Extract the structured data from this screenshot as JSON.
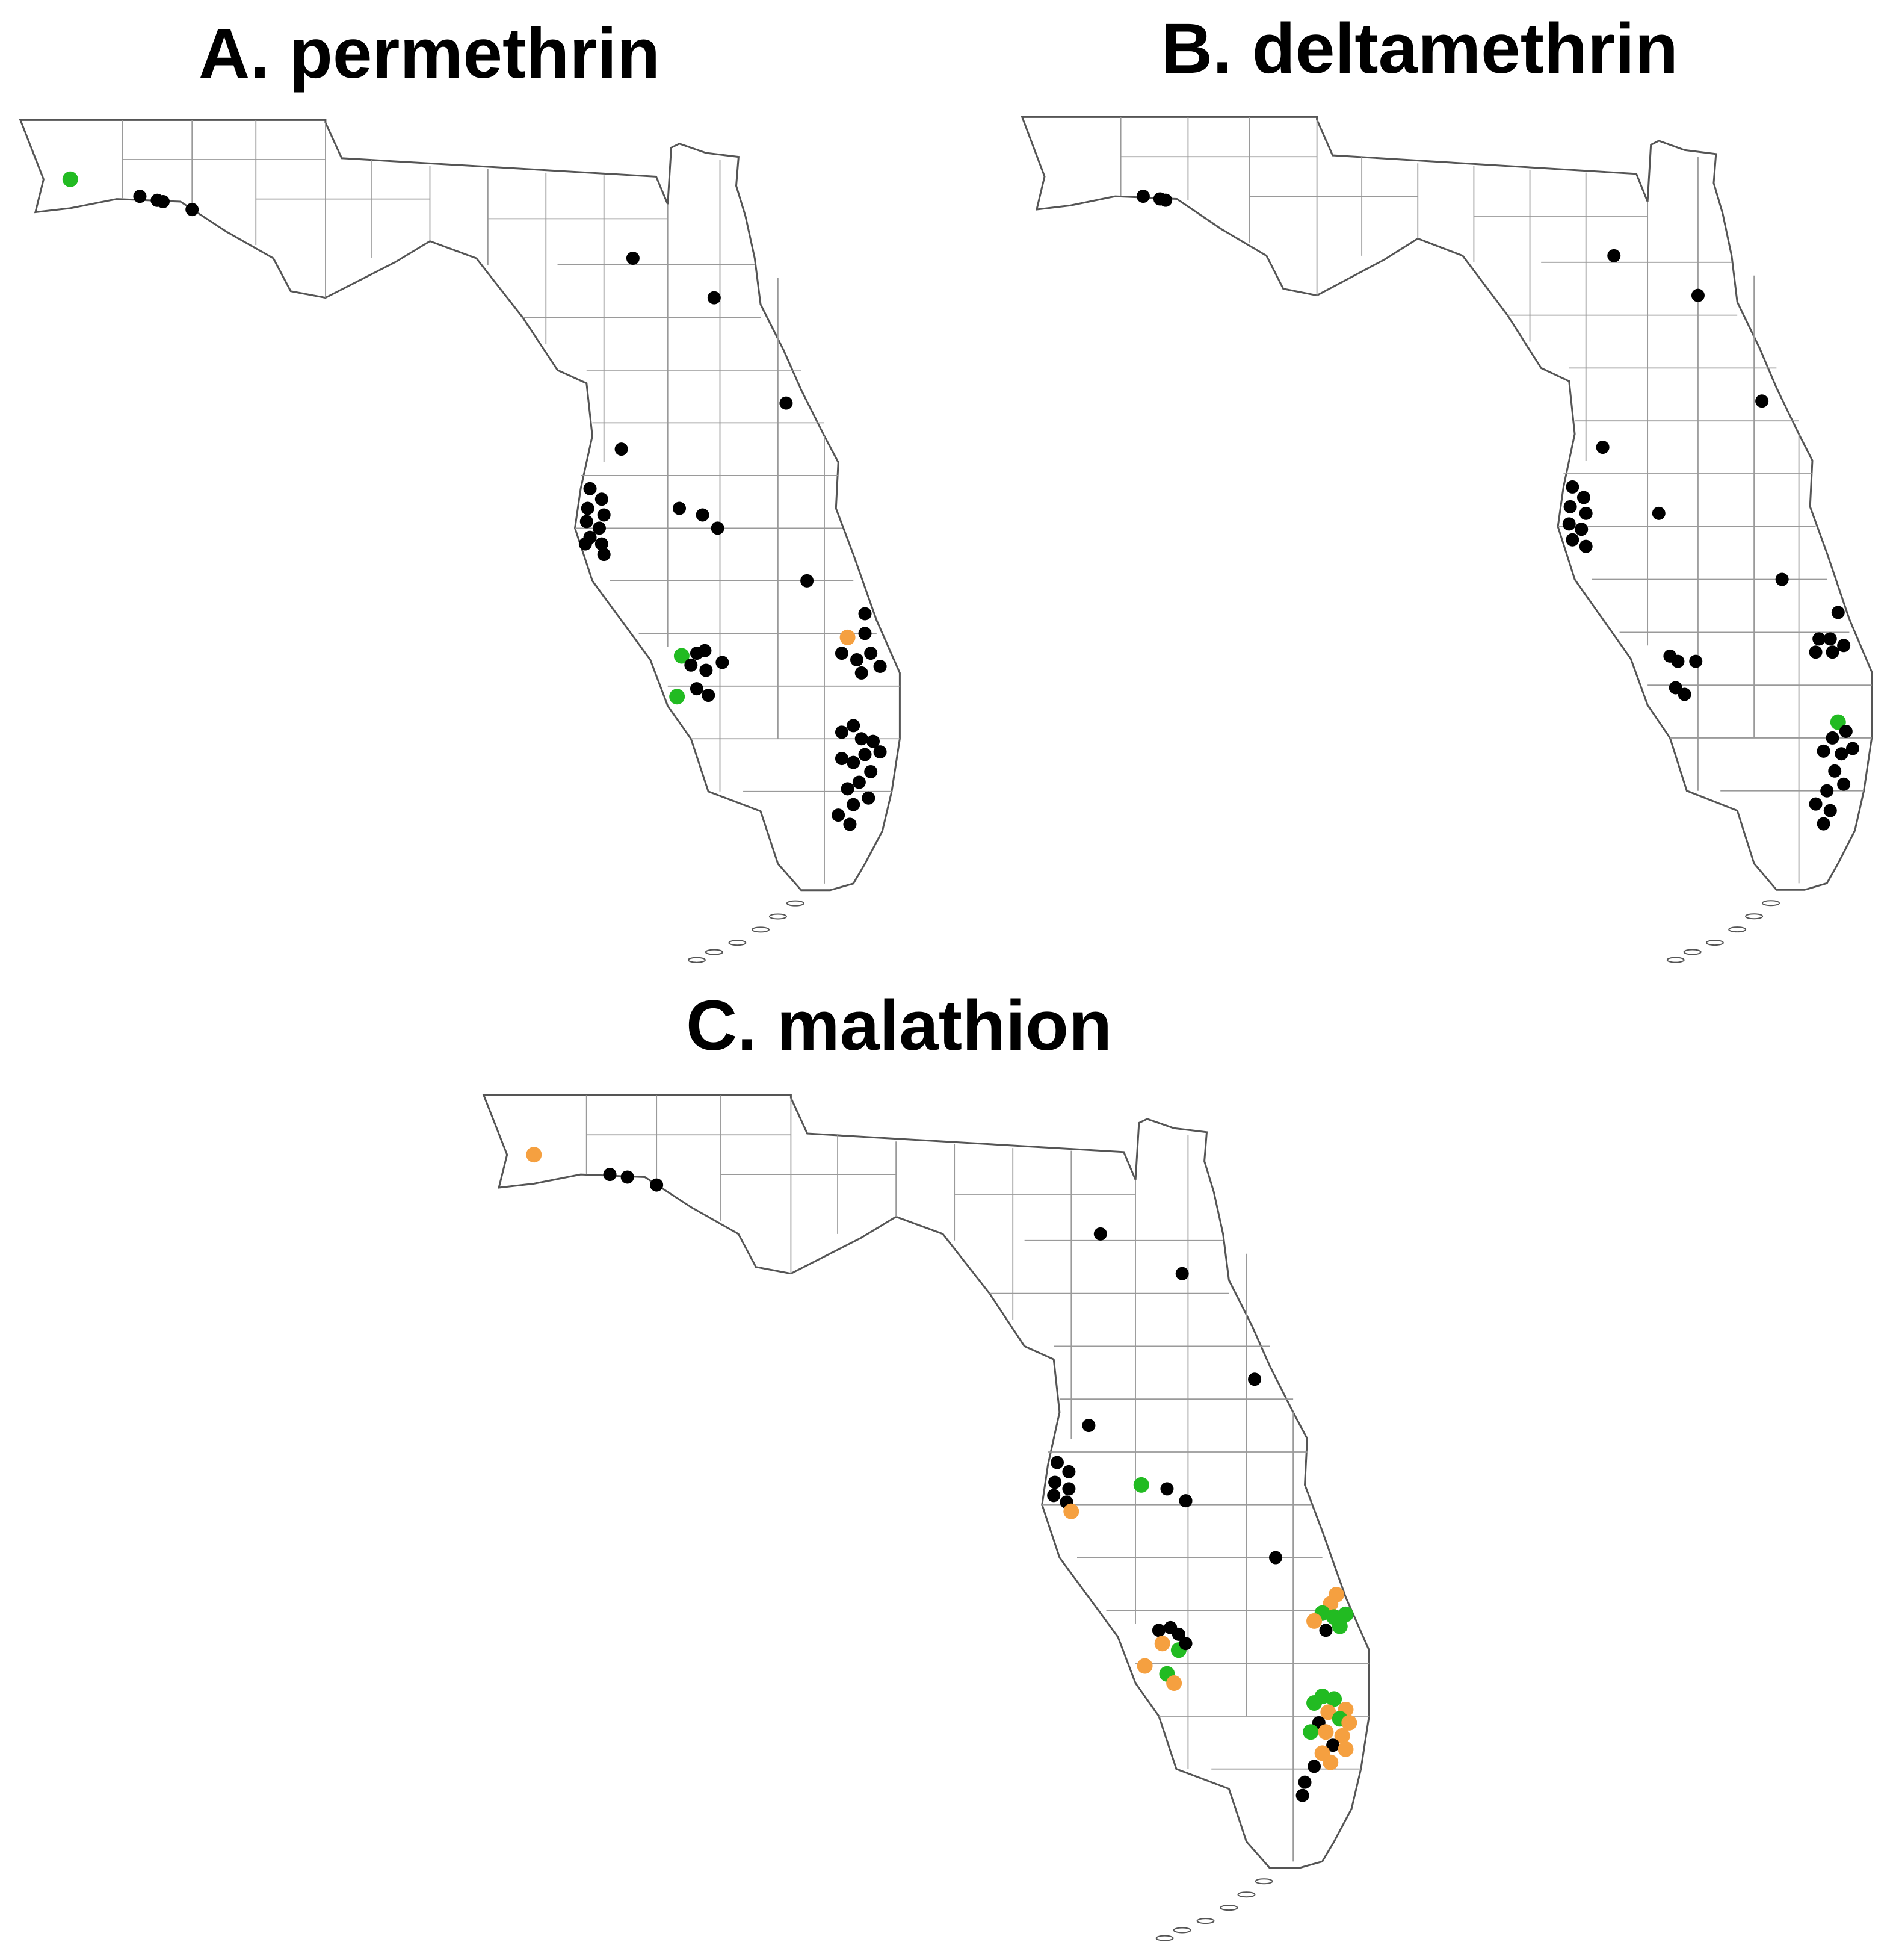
{
  "colors": {
    "black": "#000000",
    "green": "#22bb22",
    "orange": "#f5a040",
    "outline": "#555555",
    "county": "#9a9a9a"
  },
  "panels": [
    {
      "id": "A",
      "title": "A. permethrin",
      "points": [
        {
          "lon": -87.2,
          "lat": 30.55,
          "c": "green"
        },
        {
          "lon": -86.6,
          "lat": 30.42,
          "c": "black"
        },
        {
          "lon": -86.45,
          "lat": 30.39,
          "c": "black"
        },
        {
          "lon": -86.4,
          "lat": 30.38,
          "c": "black"
        },
        {
          "lon": -86.15,
          "lat": 30.32,
          "c": "black"
        },
        {
          "lon": -82.35,
          "lat": 29.95,
          "c": "black"
        },
        {
          "lon": -81.65,
          "lat": 29.65,
          "c": "black"
        },
        {
          "lon": -81.03,
          "lat": 28.85,
          "c": "black"
        },
        {
          "lon": -82.45,
          "lat": 28.5,
          "c": "black"
        },
        {
          "lon": -82.72,
          "lat": 28.2,
          "c": "black"
        },
        {
          "lon": -82.62,
          "lat": 28.12,
          "c": "black"
        },
        {
          "lon": -82.74,
          "lat": 28.05,
          "c": "black"
        },
        {
          "lon": -82.6,
          "lat": 28.0,
          "c": "black"
        },
        {
          "lon": -82.75,
          "lat": 27.95,
          "c": "black"
        },
        {
          "lon": -82.64,
          "lat": 27.9,
          "c": "black"
        },
        {
          "lon": -82.72,
          "lat": 27.83,
          "c": "black"
        },
        {
          "lon": -82.62,
          "lat": 27.78,
          "c": "black"
        },
        {
          "lon": -82.76,
          "lat": 27.78,
          "c": "black"
        },
        {
          "lon": -82.6,
          "lat": 27.7,
          "c": "black"
        },
        {
          "lon": -81.95,
          "lat": 28.05,
          "c": "black"
        },
        {
          "lon": -81.75,
          "lat": 28.0,
          "c": "black"
        },
        {
          "lon": -81.62,
          "lat": 27.9,
          "c": "black"
        },
        {
          "lon": -80.85,
          "lat": 27.5,
          "c": "black"
        },
        {
          "lon": -80.35,
          "lat": 27.25,
          "c": "black"
        },
        {
          "lon": -80.5,
          "lat": 27.07,
          "c": "orange"
        },
        {
          "lon": -80.35,
          "lat": 27.1,
          "c": "black"
        },
        {
          "lon": -80.55,
          "lat": 26.95,
          "c": "black"
        },
        {
          "lon": -80.42,
          "lat": 26.9,
          "c": "black"
        },
        {
          "lon": -80.3,
          "lat": 26.95,
          "c": "black"
        },
        {
          "lon": -80.38,
          "lat": 26.8,
          "c": "black"
        },
        {
          "lon": -80.22,
          "lat": 26.85,
          "c": "black"
        },
        {
          "lon": -81.93,
          "lat": 26.93,
          "c": "green"
        },
        {
          "lon": -81.8,
          "lat": 26.95,
          "c": "black"
        },
        {
          "lon": -81.73,
          "lat": 26.97,
          "c": "black"
        },
        {
          "lon": -81.85,
          "lat": 26.86,
          "c": "black"
        },
        {
          "lon": -81.72,
          "lat": 26.82,
          "c": "black"
        },
        {
          "lon": -81.58,
          "lat": 26.88,
          "c": "black"
        },
        {
          "lon": -81.8,
          "lat": 26.68,
          "c": "black"
        },
        {
          "lon": -81.7,
          "lat": 26.63,
          "c": "black"
        },
        {
          "lon": -81.97,
          "lat": 26.62,
          "c": "green"
        },
        {
          "lon": -80.55,
          "lat": 26.35,
          "c": "black"
        },
        {
          "lon": -80.45,
          "lat": 26.4,
          "c": "black"
        },
        {
          "lon": -80.38,
          "lat": 26.3,
          "c": "black"
        },
        {
          "lon": -80.28,
          "lat": 26.28,
          "c": "black"
        },
        {
          "lon": -80.22,
          "lat": 26.2,
          "c": "black"
        },
        {
          "lon": -80.35,
          "lat": 26.18,
          "c": "black"
        },
        {
          "lon": -80.45,
          "lat": 26.12,
          "c": "black"
        },
        {
          "lon": -80.55,
          "lat": 26.15,
          "c": "black"
        },
        {
          "lon": -80.3,
          "lat": 26.05,
          "c": "black"
        },
        {
          "lon": -80.4,
          "lat": 25.97,
          "c": "black"
        },
        {
          "lon": -80.5,
          "lat": 25.92,
          "c": "black"
        },
        {
          "lon": -80.32,
          "lat": 25.85,
          "c": "black"
        },
        {
          "lon": -80.45,
          "lat": 25.8,
          "c": "black"
        },
        {
          "lon": -80.58,
          "lat": 25.72,
          "c": "black"
        },
        {
          "lon": -80.48,
          "lat": 25.65,
          "c": "black"
        }
      ]
    },
    {
      "id": "B",
      "title": "B. deltamethrin",
      "points": [
        {
          "lon": -86.55,
          "lat": 30.4,
          "c": "black"
        },
        {
          "lon": -86.4,
          "lat": 30.38,
          "c": "black"
        },
        {
          "lon": -86.35,
          "lat": 30.37,
          "c": "black"
        },
        {
          "lon": -82.35,
          "lat": 29.95,
          "c": "black"
        },
        {
          "lon": -81.6,
          "lat": 29.65,
          "c": "black"
        },
        {
          "lon": -81.03,
          "lat": 28.85,
          "c": "black"
        },
        {
          "lon": -82.45,
          "lat": 28.5,
          "c": "black"
        },
        {
          "lon": -82.72,
          "lat": 28.2,
          "c": "black"
        },
        {
          "lon": -82.62,
          "lat": 28.12,
          "c": "black"
        },
        {
          "lon": -82.74,
          "lat": 28.05,
          "c": "black"
        },
        {
          "lon": -82.6,
          "lat": 28.0,
          "c": "black"
        },
        {
          "lon": -82.75,
          "lat": 27.92,
          "c": "black"
        },
        {
          "lon": -82.64,
          "lat": 27.88,
          "c": "black"
        },
        {
          "lon": -82.72,
          "lat": 27.8,
          "c": "black"
        },
        {
          "lon": -82.6,
          "lat": 27.75,
          "c": "black"
        },
        {
          "lon": -81.95,
          "lat": 28.0,
          "c": "black"
        },
        {
          "lon": -80.85,
          "lat": 27.5,
          "c": "black"
        },
        {
          "lon": -80.35,
          "lat": 27.25,
          "c": "black"
        },
        {
          "lon": -80.42,
          "lat": 27.05,
          "c": "black"
        },
        {
          "lon": -80.52,
          "lat": 27.05,
          "c": "black"
        },
        {
          "lon": -80.3,
          "lat": 27.0,
          "c": "black"
        },
        {
          "lon": -80.4,
          "lat": 26.95,
          "c": "black"
        },
        {
          "lon": -80.55,
          "lat": 26.95,
          "c": "black"
        },
        {
          "lon": -81.85,
          "lat": 26.92,
          "c": "black"
        },
        {
          "lon": -81.78,
          "lat": 26.88,
          "c": "black"
        },
        {
          "lon": -81.62,
          "lat": 26.88,
          "c": "black"
        },
        {
          "lon": -81.8,
          "lat": 26.68,
          "c": "black"
        },
        {
          "lon": -81.72,
          "lat": 26.63,
          "c": "black"
        },
        {
          "lon": -80.35,
          "lat": 26.42,
          "c": "green"
        },
        {
          "lon": -80.28,
          "lat": 26.35,
          "c": "black"
        },
        {
          "lon": -80.4,
          "lat": 26.3,
          "c": "black"
        },
        {
          "lon": -80.22,
          "lat": 26.22,
          "c": "black"
        },
        {
          "lon": -80.32,
          "lat": 26.18,
          "c": "black"
        },
        {
          "lon": -80.48,
          "lat": 26.2,
          "c": "black"
        },
        {
          "lon": -80.38,
          "lat": 26.05,
          "c": "black"
        },
        {
          "lon": -80.3,
          "lat": 25.95,
          "c": "black"
        },
        {
          "lon": -80.45,
          "lat": 25.9,
          "c": "black"
        },
        {
          "lon": -80.55,
          "lat": 25.8,
          "c": "black"
        },
        {
          "lon": -80.42,
          "lat": 25.75,
          "c": "black"
        },
        {
          "lon": -80.48,
          "lat": 25.65,
          "c": "black"
        }
      ]
    },
    {
      "id": "C",
      "title": "C. malathion",
      "points": [
        {
          "lon": -87.2,
          "lat": 30.55,
          "c": "orange"
        },
        {
          "lon": -86.55,
          "lat": 30.4,
          "c": "black"
        },
        {
          "lon": -86.4,
          "lat": 30.38,
          "c": "black"
        },
        {
          "lon": -86.15,
          "lat": 30.32,
          "c": "black"
        },
        {
          "lon": -82.35,
          "lat": 29.95,
          "c": "black"
        },
        {
          "lon": -81.65,
          "lat": 29.65,
          "c": "black"
        },
        {
          "lon": -81.03,
          "lat": 28.85,
          "c": "black"
        },
        {
          "lon": -82.45,
          "lat": 28.5,
          "c": "black"
        },
        {
          "lon": -82.72,
          "lat": 28.22,
          "c": "black"
        },
        {
          "lon": -82.62,
          "lat": 28.15,
          "c": "black"
        },
        {
          "lon": -82.74,
          "lat": 28.07,
          "c": "black"
        },
        {
          "lon": -82.62,
          "lat": 28.02,
          "c": "black"
        },
        {
          "lon": -82.75,
          "lat": 27.97,
          "c": "black"
        },
        {
          "lon": -82.64,
          "lat": 27.92,
          "c": "black"
        },
        {
          "lon": -82.6,
          "lat": 27.85,
          "c": "orange"
        },
        {
          "lon": -82.0,
          "lat": 28.05,
          "c": "green"
        },
        {
          "lon": -81.78,
          "lat": 28.02,
          "c": "black"
        },
        {
          "lon": -81.62,
          "lat": 27.93,
          "c": "black"
        },
        {
          "lon": -80.85,
          "lat": 27.5,
          "c": "black"
        },
        {
          "lon": -80.33,
          "lat": 27.22,
          "c": "orange"
        },
        {
          "lon": -80.38,
          "lat": 27.15,
          "c": "orange"
        },
        {
          "lon": -80.45,
          "lat": 27.08,
          "c": "green"
        },
        {
          "lon": -80.35,
          "lat": 27.05,
          "c": "green"
        },
        {
          "lon": -80.25,
          "lat": 27.07,
          "c": "green"
        },
        {
          "lon": -80.52,
          "lat": 27.02,
          "c": "orange"
        },
        {
          "lon": -80.3,
          "lat": 26.98,
          "c": "green"
        },
        {
          "lon": -80.42,
          "lat": 26.95,
          "c": "black"
        },
        {
          "lon": -81.85,
          "lat": 26.95,
          "c": "black"
        },
        {
          "lon": -81.75,
          "lat": 26.97,
          "c": "black"
        },
        {
          "lon": -81.68,
          "lat": 26.92,
          "c": "black"
        },
        {
          "lon": -81.82,
          "lat": 26.85,
          "c": "orange"
        },
        {
          "lon": -81.68,
          "lat": 26.8,
          "c": "green"
        },
        {
          "lon": -81.62,
          "lat": 26.85,
          "c": "black"
        },
        {
          "lon": -81.97,
          "lat": 26.68,
          "c": "orange"
        },
        {
          "lon": -81.78,
          "lat": 26.62,
          "c": "green"
        },
        {
          "lon": -81.72,
          "lat": 26.55,
          "c": "orange"
        },
        {
          "lon": -80.45,
          "lat": 26.45,
          "c": "green"
        },
        {
          "lon": -80.35,
          "lat": 26.43,
          "c": "green"
        },
        {
          "lon": -80.52,
          "lat": 26.4,
          "c": "green"
        },
        {
          "lon": -80.25,
          "lat": 26.35,
          "c": "orange"
        },
        {
          "lon": -80.4,
          "lat": 26.33,
          "c": "orange"
        },
        {
          "lon": -80.3,
          "lat": 26.28,
          "c": "green"
        },
        {
          "lon": -80.22,
          "lat": 26.25,
          "c": "orange"
        },
        {
          "lon": -80.48,
          "lat": 26.25,
          "c": "black"
        },
        {
          "lon": -80.55,
          "lat": 26.18,
          "c": "green"
        },
        {
          "lon": -80.42,
          "lat": 26.18,
          "c": "orange"
        },
        {
          "lon": -80.28,
          "lat": 26.15,
          "c": "orange"
        },
        {
          "lon": -80.36,
          "lat": 26.08,
          "c": "black"
        },
        {
          "lon": -80.25,
          "lat": 26.05,
          "c": "orange"
        },
        {
          "lon": -80.45,
          "lat": 26.02,
          "c": "orange"
        },
        {
          "lon": -80.38,
          "lat": 25.95,
          "c": "orange"
        },
        {
          "lon": -80.52,
          "lat": 25.92,
          "c": "black"
        },
        {
          "lon": -80.6,
          "lat": 25.8,
          "c": "black"
        },
        {
          "lon": -80.62,
          "lat": 25.7,
          "c": "black"
        }
      ]
    }
  ]
}
